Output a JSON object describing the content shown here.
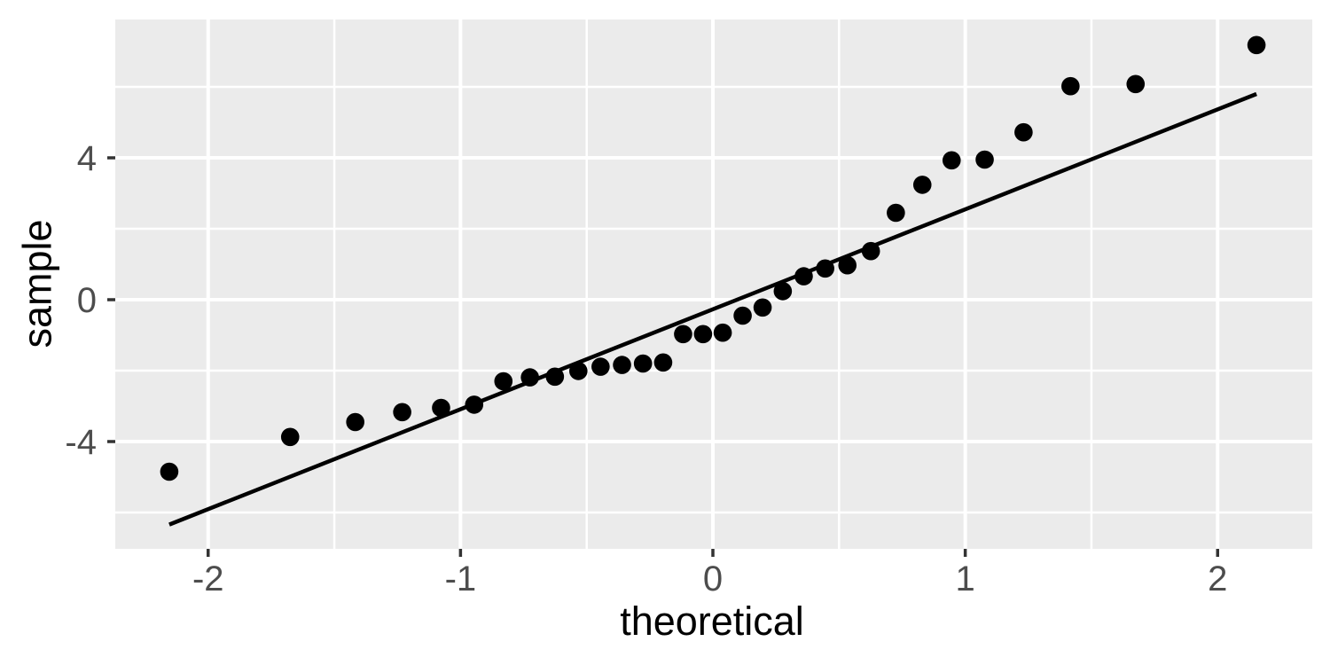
{
  "chart_data": {
    "type": "scatter",
    "subtype": "qq-plot",
    "title": "",
    "xlabel": "theoretical",
    "ylabel": "sample",
    "xlim": [
      -2.368,
      2.375
    ],
    "ylim": [
      -7.025,
      7.9
    ],
    "x_ticks": [
      -2,
      -1,
      0,
      1,
      2
    ],
    "x_tick_labels": [
      "-2",
      "-1",
      "0",
      "1",
      "2"
    ],
    "y_ticks": [
      -4,
      0,
      4
    ],
    "y_tick_labels": [
      "-4",
      "0",
      "4"
    ],
    "x_minor_gridlines": [
      -1.5,
      -0.5,
      0.5,
      1.5
    ],
    "y_minor_gridlines": [
      -6,
      -2,
      2,
      6
    ],
    "grid": true,
    "legend_position": "none",
    "points": {
      "theoretical": [
        -2.154,
        -1.675,
        -1.417,
        -1.231,
        -1.077,
        -0.946,
        -0.83,
        -0.725,
        -0.626,
        -0.533,
        -0.445,
        -0.36,
        -0.277,
        -0.197,
        -0.118,
        -0.039,
        0.039,
        0.118,
        0.197,
        0.277,
        0.36,
        0.445,
        0.533,
        0.626,
        0.725,
        0.83,
        0.946,
        1.077,
        1.231,
        1.417,
        1.675,
        2.154
      ],
      "sample": [
        -4.85,
        -3.87,
        -3.45,
        -3.17,
        -3.05,
        -2.96,
        -2.3,
        -2.19,
        -2.17,
        -2.01,
        -1.89,
        -1.84,
        -1.8,
        -1.77,
        -0.97,
        -0.97,
        -0.93,
        -0.45,
        -0.22,
        0.24,
        0.66,
        0.88,
        0.97,
        1.37,
        2.45,
        3.24,
        3.93,
        3.95,
        4.72,
        6.02,
        6.08,
        7.18
      ]
    },
    "qq_line": {
      "x1": -2.154,
      "y1": -6.34,
      "x2": 2.154,
      "y2": 5.8,
      "slope": 2.82,
      "intercept": -0.27
    },
    "style": {
      "panel_background": "#EBEBEB",
      "gridline_color": "#FFFFFF",
      "point_color": "#000000",
      "line_color": "#000000",
      "tick_mark_color": "#333333",
      "tick_label_color": "#4D4D4D",
      "axis_title_color": "#000000",
      "figure_background": "#FFFFFF"
    }
  }
}
